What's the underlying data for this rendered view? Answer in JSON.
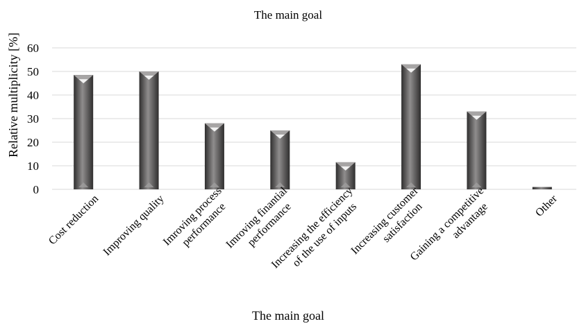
{
  "chart_data": {
    "type": "bar",
    "title": "The main goal",
    "xlabel": "The main goal",
    "ylabel": "Relative multiplicity [%]",
    "ylim": [
      0,
      60
    ],
    "yticks": [
      0,
      10,
      20,
      30,
      40,
      50,
      60
    ],
    "grid": true,
    "categories": [
      [
        "Cost reduction"
      ],
      [
        "Improving quality"
      ],
      [
        "Imroving process",
        "performance"
      ],
      [
        "Imroving finantial",
        "performance"
      ],
      [
        "Increasing the efficiency",
        "of the use of inputs"
      ],
      [
        "Increasing customer",
        "satisfaction"
      ],
      [
        "Gaining a competitive",
        "advantage"
      ],
      [
        "Other"
      ]
    ],
    "values": [
      48.5,
      50,
      28,
      25,
      11.5,
      53,
      33,
      1
    ],
    "colors": {
      "bar_dark": "#3a3939",
      "bar_light": "#8f8d8d",
      "grid": "#d9d9d9"
    }
  }
}
